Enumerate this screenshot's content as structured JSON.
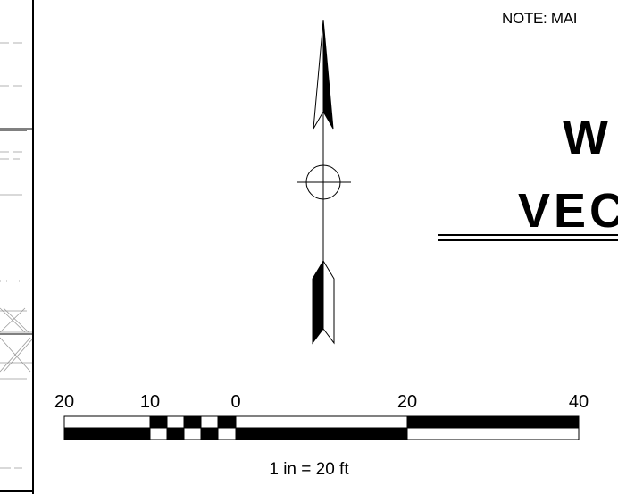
{
  "note": {
    "text": "NOTE: MAI"
  },
  "title": {
    "line1": "W",
    "line2": "VEC"
  },
  "scale_bar": {
    "tick_labels": [
      "20",
      "10",
      "0",
      "20",
      "40"
    ],
    "caption": "1 in =  20 ft"
  },
  "colors": {
    "ink": "#000000",
    "paper": "#ffffff",
    "linework": "#a0a0a0"
  },
  "icons": {
    "north_arrow": "north-arrow-icon"
  }
}
